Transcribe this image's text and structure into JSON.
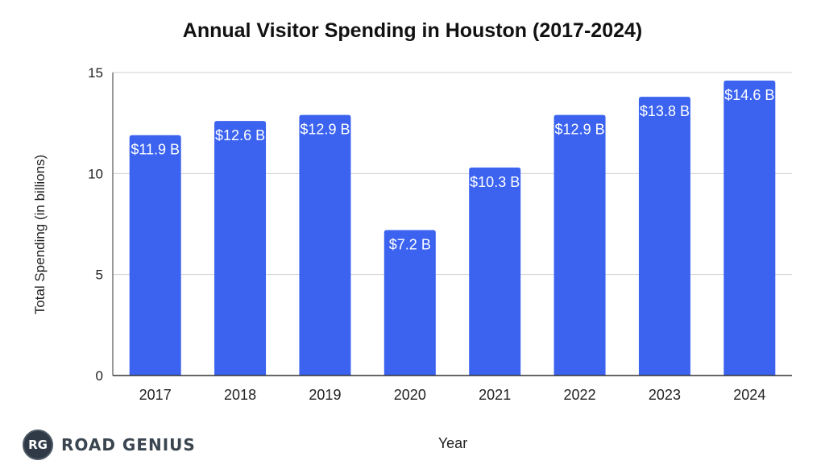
{
  "chart_data": {
    "type": "bar",
    "title": "Annual Visitor Spending in Houston (2017-2024)",
    "xlabel": "Year",
    "ylabel": "Total Spending (in billions)",
    "categories": [
      "2017",
      "2018",
      "2019",
      "2020",
      "2021",
      "2022",
      "2023",
      "2024"
    ],
    "values": [
      11.9,
      12.6,
      12.9,
      7.2,
      10.3,
      12.9,
      13.8,
      14.6
    ],
    "data_labels": [
      "$11.9 B",
      "$12.6 B",
      "$12.9 B",
      "$7.2 B",
      "$10.3 B",
      "$12.9 B",
      "$13.8 B",
      "$14.6 B"
    ],
    "ylim": [
      0,
      15
    ],
    "yticks": [
      0,
      5,
      10,
      15
    ],
    "grid": true,
    "bar_color": "#3b63f0"
  },
  "branding": {
    "badge": "RG",
    "name": "ROAD GENIUS"
  }
}
